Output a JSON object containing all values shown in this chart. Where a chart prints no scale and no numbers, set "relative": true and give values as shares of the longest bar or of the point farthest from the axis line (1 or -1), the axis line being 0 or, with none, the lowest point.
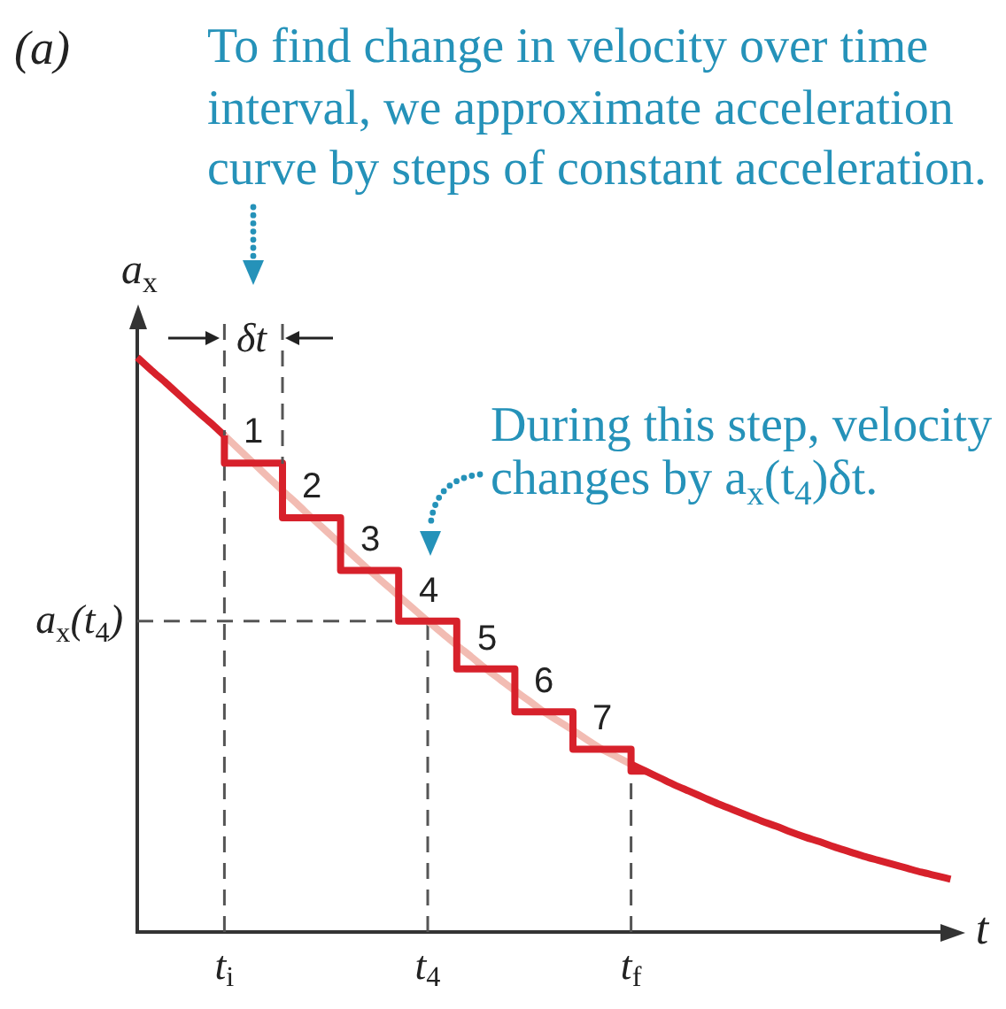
{
  "chart_data": {
    "type": "line",
    "relative": true,
    "marker": "none",
    "tick_labels": "x",
    "xlabel": "t",
    "ylabel": "a$_{x}$",
    "categories": [
      null,
      null,
      null,
      null,
      null,
      null,
      "t$_{i}$",
      null,
      null,
      null,
      null,
      null,
      null,
      null,
      null,
      null,
      null,
      null,
      null,
      null,
      "t$_{4}$",
      null,
      null,
      null,
      null,
      null,
      null,
      null,
      null,
      null,
      null,
      null,
      null,
      null,
      "t$_{f}$",
      null,
      null,
      null,
      null,
      null,
      null,
      null,
      null,
      null,
      null,
      null,
      null,
      null,
      null,
      null,
      null,
      null,
      null,
      null,
      null,
      null,
      null,
      null
    ],
    "series": [
      {
        "color": "#d7212b",
        "values": [
          1,
          0.977,
          0.955,
          0.932,
          0.909,
          0.887,
          0.864,
          null,
          null,
          null,
          null,
          null,
          null,
          null,
          null,
          null,
          null,
          null,
          null,
          null,
          null,
          null,
          null,
          null,
          null,
          null,
          null,
          null,
          null,
          null,
          null,
          null,
          null,
          null,
          null,
          null,
          null,
          null,
          null,
          null,
          null,
          null,
          null,
          null,
          null,
          null,
          null,
          null,
          null,
          null,
          null,
          null,
          null,
          null,
          null,
          null,
          null,
          null
        ]
      },
      {
        "color": "#f2bcb3",
        "values": [
          null,
          null,
          null,
          null,
          null,
          null,
          0.864,
          0.84,
          0.816,
          0.792,
          0.768,
          0.745,
          0.721,
          0.698,
          0.675,
          0.652,
          0.629,
          0.607,
          0.585,
          0.563,
          0.541,
          0.52,
          0.499,
          0.479,
          0.458,
          0.439,
          0.42,
          0.402,
          0.383,
          0.367,
          0.351,
          0.334,
          0.318,
          0.305,
          0.292,
          null,
          null,
          null,
          null,
          null,
          null,
          null,
          null,
          null,
          null,
          null,
          null,
          null,
          null,
          null,
          null,
          null,
          null,
          null,
          null,
          null,
          null,
          null
        ]
      },
      {
        "color": "#d7212b",
        "values": [
          null,
          null,
          null,
          null,
          null,
          null,
          null,
          null,
          null,
          null,
          null,
          null,
          null,
          null,
          null,
          null,
          null,
          null,
          null,
          null,
          null,
          null,
          null,
          null,
          null,
          null,
          null,
          null,
          null,
          null,
          null,
          null,
          null,
          null,
          0.292,
          0.28,
          0.268,
          0.256,
          0.245,
          0.234,
          0.223,
          0.213,
          0.203,
          0.193,
          0.184,
          0.174,
          0.165,
          0.157,
          0.148,
          0.14,
          0.132,
          0.125,
          0.118,
          0.111,
          0.104,
          0.098,
          0.092,
          null
        ]
      },
      {
        "type": "step",
        "color": "#d7212b",
        "values": [
          null,
          null,
          null,
          null,
          null,
          null,
          0.864,
          0.816,
          0.816,
          0.816,
          0.816,
          0.721,
          0.721,
          0.721,
          0.721,
          0.629,
          0.629,
          0.629,
          0.629,
          0.541,
          0.541,
          0.541,
          0.541,
          0.458,
          0.458,
          0.458,
          0.458,
          0.383,
          0.383,
          0.383,
          0.383,
          0.318,
          0.318,
          0.318,
          0.318,
          0.28,
          null,
          null,
          null,
          null,
          null,
          null,
          null,
          null,
          null,
          null,
          null,
          null,
          null,
          null,
          null,
          null,
          null,
          null,
          null,
          null,
          null,
          null
        ]
      }
    ],
    "ref_lines": [
      {
        "axis": "x",
        "value": "t$_{i}$",
        "color": "#555555",
        "line_style": "dashed"
      },
      {
        "axis": "x",
        "value": "t$_{4}$",
        "color": "#555555",
        "line_style": "dashed"
      },
      {
        "axis": "x",
        "value": "t$_{f}$",
        "color": "#555555",
        "line_style": "dashed"
      },
      {
        "axis": "y",
        "value": 0.541,
        "label": "a$_{x}$(t$_{4}$)",
        "color": "#555555",
        "line_style": "dashed"
      }
    ],
    "annotations": [
      "(a)",
      "To find change in velocity over time interval, we approximate acceleration curve by steps of constant acceleration.",
      "During this step, velocity changes by a$_{x}$(t$_{4}$)δt.",
      "δt",
      "1",
      "2",
      "3",
      "4",
      "5",
      "6",
      "7"
    ]
  }
}
